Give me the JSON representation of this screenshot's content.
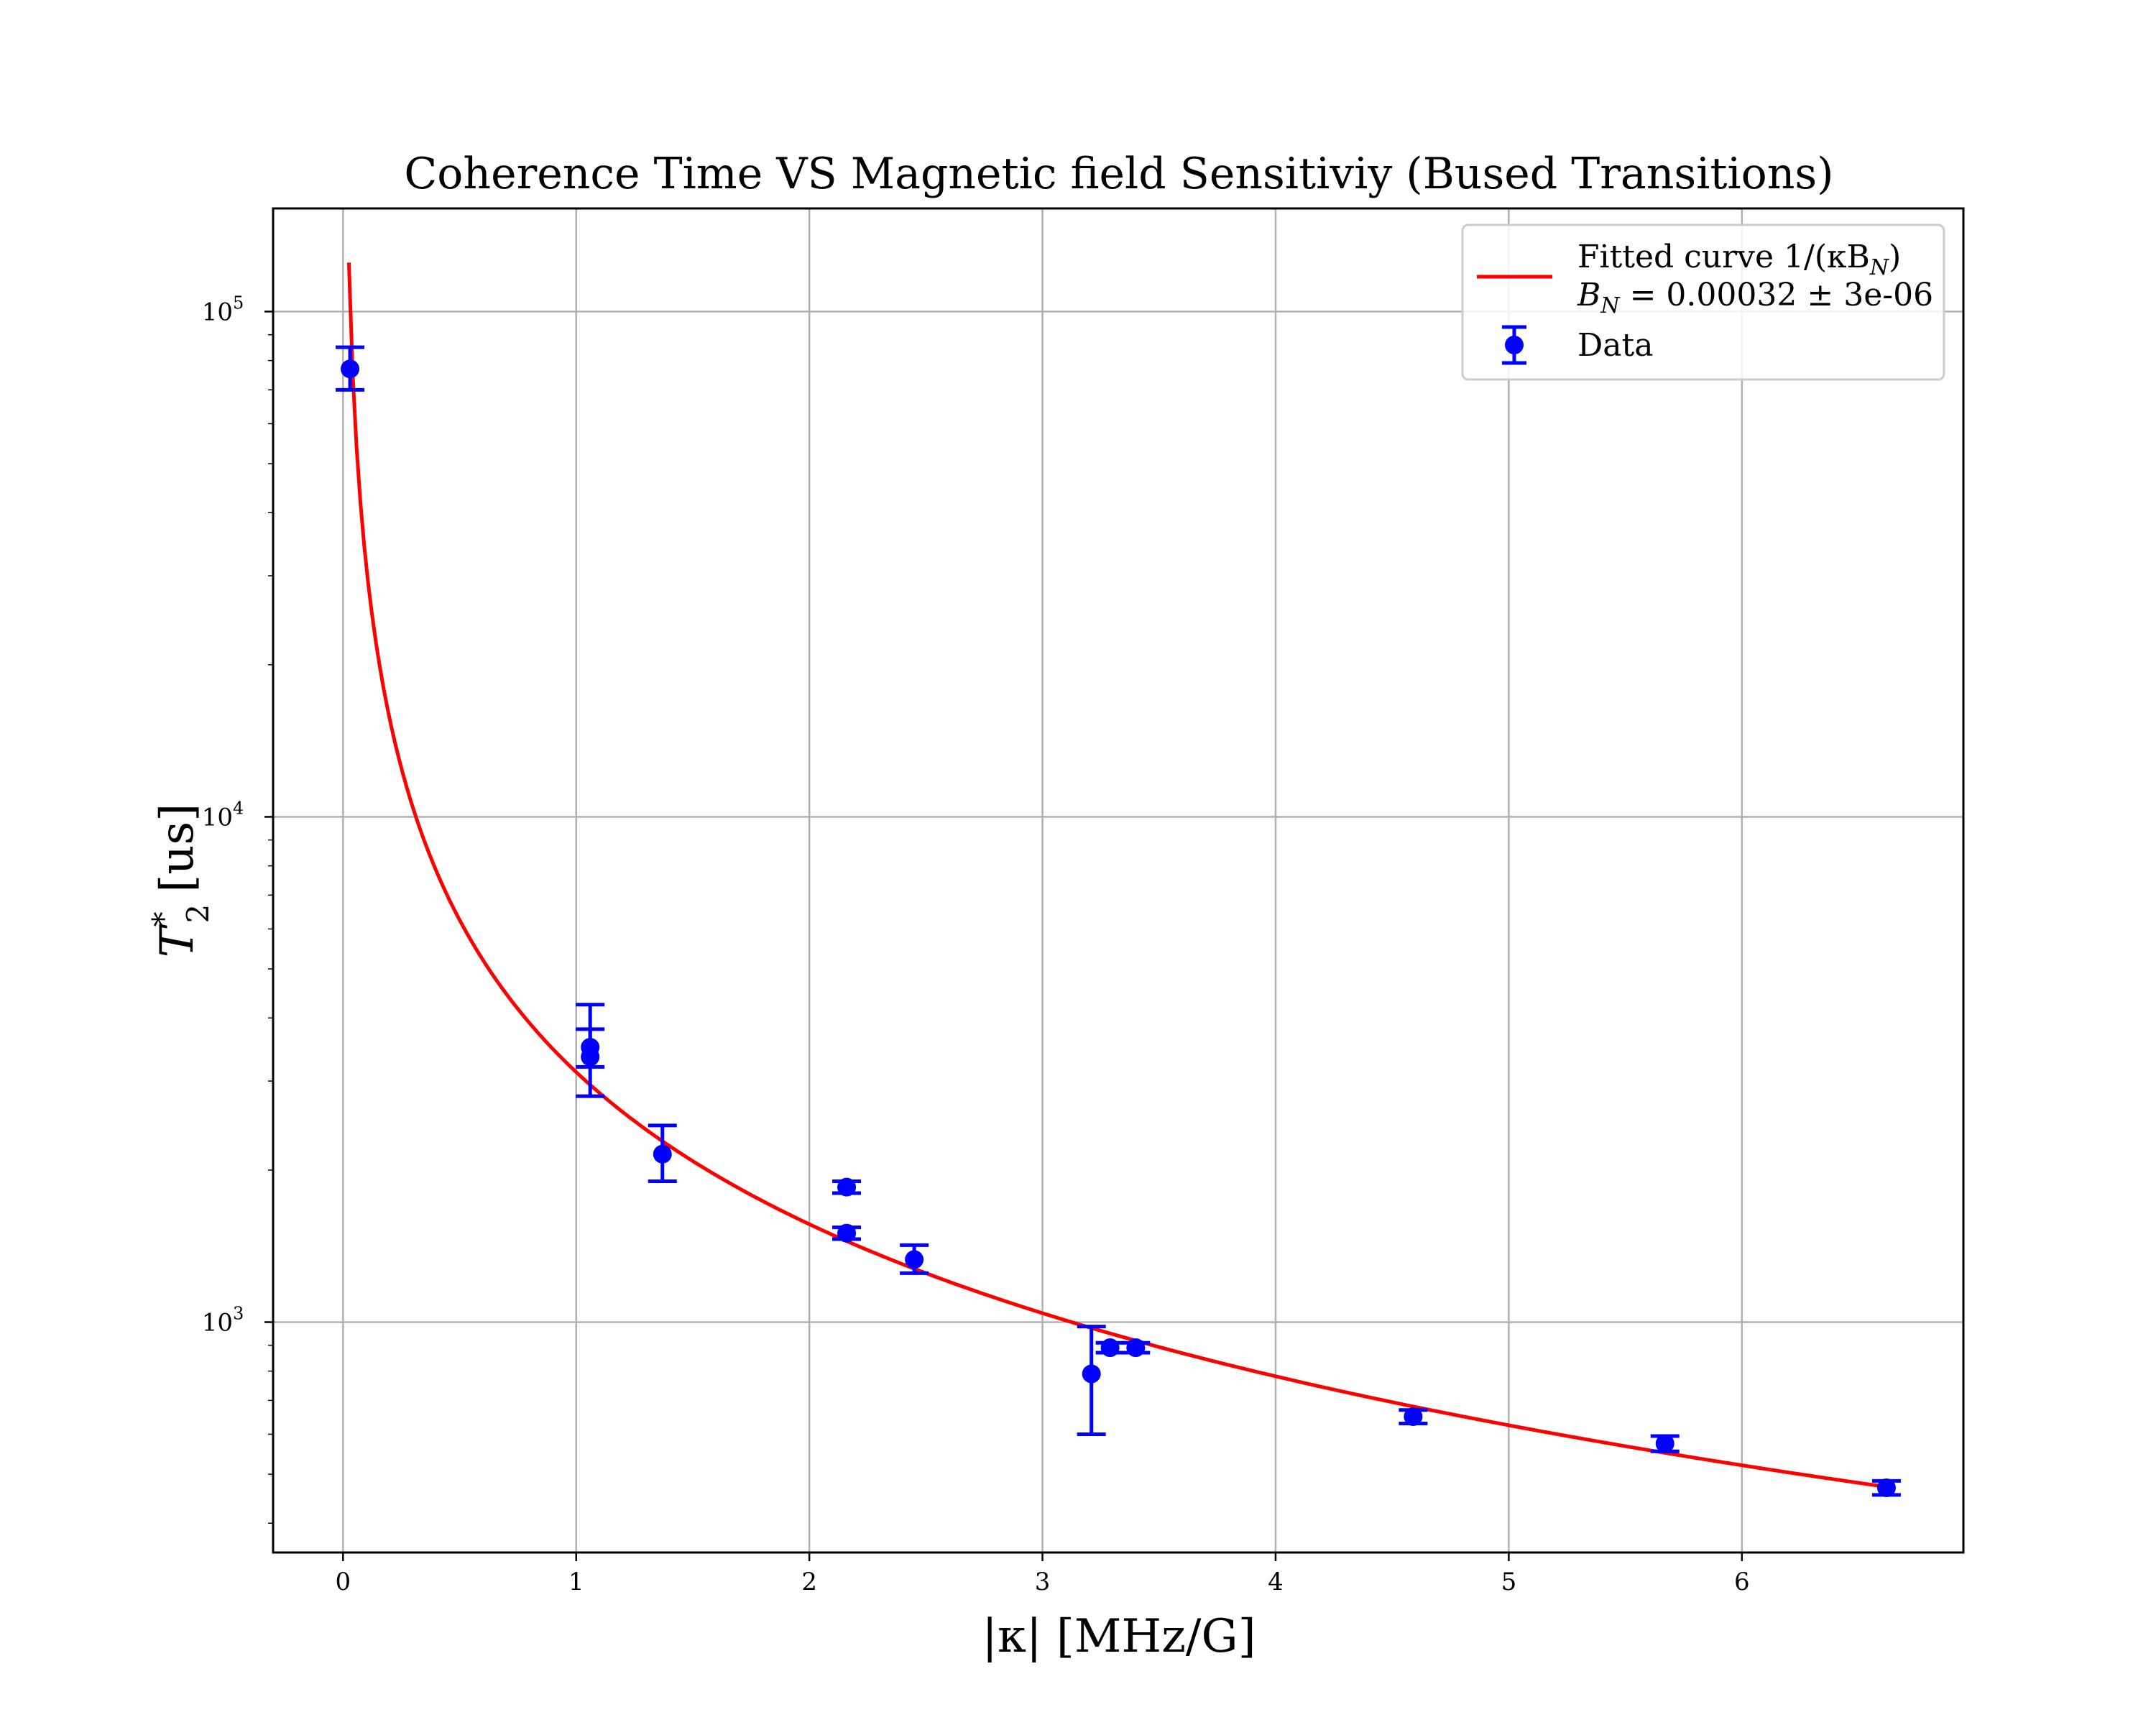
{
  "chart_data": {
    "type": "scatter",
    "title": "Coherence Time VS Magnetic field Sensitiviy (Bused Transitions)",
    "xlabel": "|κ| [MHz/G]",
    "ylabel_main": "T",
    "ylabel_sup": "*",
    "ylabel_sub": "2",
    "ylabel_units": "[us]",
    "xlim": [
      -0.3,
      6.95
    ],
    "ylim": [
      350,
      160000
    ],
    "yscale": "log",
    "grid": true,
    "legend_position": "top-right",
    "x_ticks": [
      0,
      1,
      2,
      3,
      4,
      5,
      6
    ],
    "x_tick_labels": [
      "0",
      "1",
      "2",
      "3",
      "4",
      "5",
      "6"
    ],
    "y_ticks": [
      1000,
      10000,
      100000
    ],
    "y_tick_labels": [
      {
        "base": "10",
        "exp": "3"
      },
      {
        "base": "10",
        "exp": "4"
      },
      {
        "base": "10",
        "exp": "5"
      }
    ],
    "series": [
      {
        "name": "Fitted curve 1/(κB_N)",
        "legend_line1": "Fitted curve 1/(κB",
        "legend_line1_sub": "N",
        "legend_line1_end": ")",
        "legend_line2_var": "B",
        "legend_line2_sub": "N",
        "legend_line2_rest": " = 0.00032 ± 3e-06",
        "kind": "line",
        "color": "#ff0000",
        "B_N": 0.00032,
        "x_start": 0.025,
        "x_end": 6.62
      },
      {
        "name": "Data",
        "kind": "errorbar",
        "color": "#0000ff",
        "points": [
          {
            "x": 0.03,
            "y": 77000,
            "ylo": 70000,
            "yhi": 85000
          },
          {
            "x": 1.06,
            "y": 3500,
            "ylo": 3200,
            "yhi": 3800
          },
          {
            "x": 1.06,
            "y": 3350,
            "ylo": 2800,
            "yhi": 4250
          },
          {
            "x": 1.37,
            "y": 2150,
            "ylo": 1900,
            "yhi": 2450
          },
          {
            "x": 2.16,
            "y": 1850,
            "ylo": 1800,
            "yhi": 1900
          },
          {
            "x": 2.16,
            "y": 1500,
            "ylo": 1460,
            "yhi": 1540
          },
          {
            "x": 2.45,
            "y": 1330,
            "ylo": 1250,
            "yhi": 1420
          },
          {
            "x": 3.21,
            "y": 790,
            "ylo": 600,
            "yhi": 980
          },
          {
            "x": 3.29,
            "y": 890,
            "ylo": 870,
            "yhi": 910
          },
          {
            "x": 3.4,
            "y": 890,
            "ylo": 870,
            "yhi": 910
          },
          {
            "x": 4.59,
            "y": 650,
            "ylo": 630,
            "yhi": 670
          },
          {
            "x": 5.67,
            "y": 575,
            "ylo": 555,
            "yhi": 595
          },
          {
            "x": 6.62,
            "y": 470,
            "ylo": 455,
            "yhi": 485
          }
        ]
      }
    ]
  }
}
